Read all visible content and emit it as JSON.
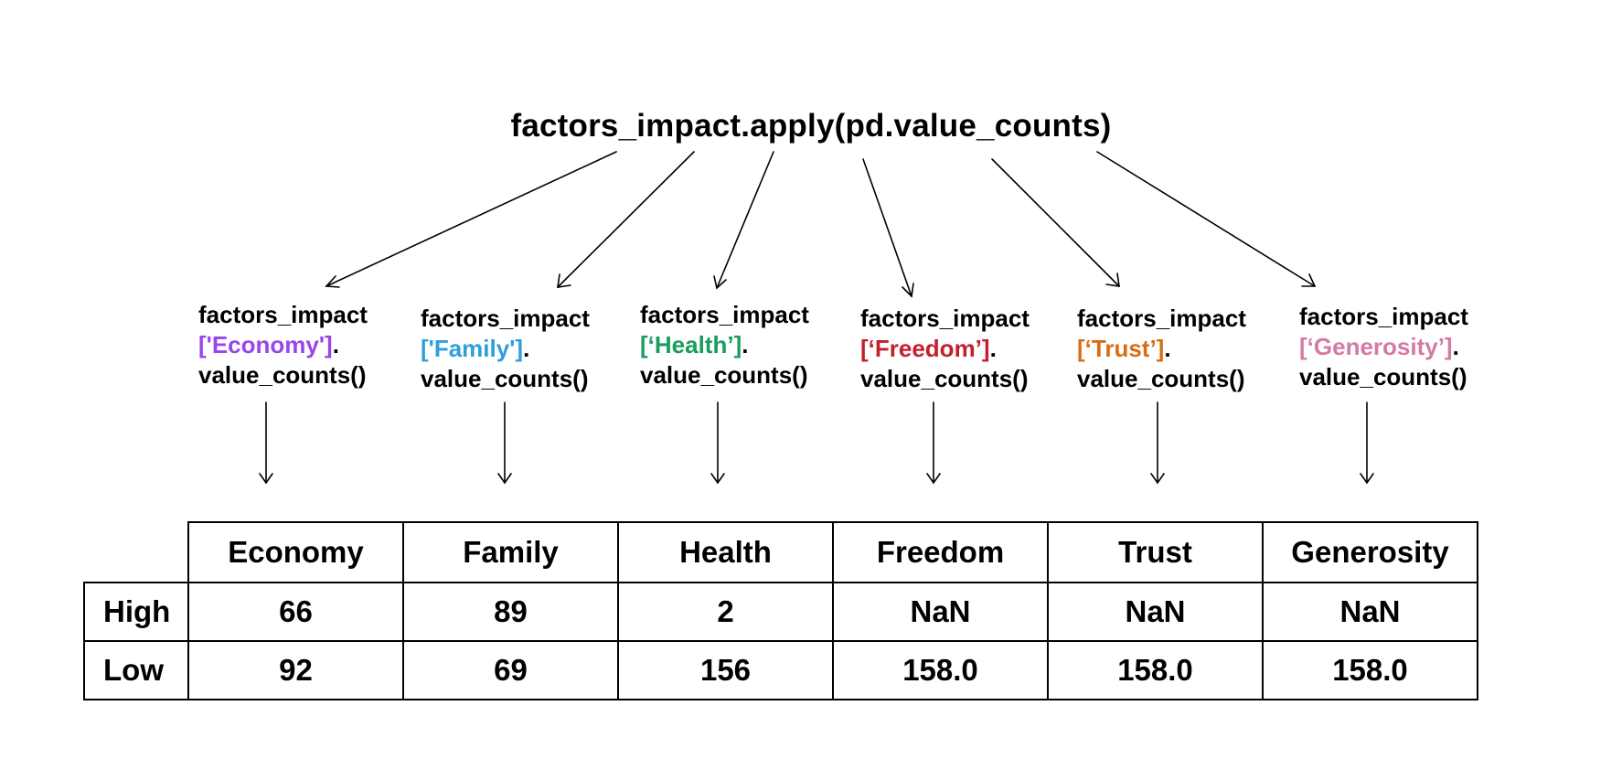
{
  "title": "factors_impact.apply(pd.value_counts)",
  "calls": [
    {
      "prefix": "factors_impact",
      "key": "['Economy']",
      "dot": ".",
      "method": "value_counts()",
      "color": "#9b45e8"
    },
    {
      "prefix": "factors_impact",
      "key": "['Family']",
      "dot": ".",
      "method": "value_counts()",
      "color": "#2e9fd8"
    },
    {
      "prefix": "factors_impact",
      "key": "[‘Health’]",
      "dot": ".",
      "method": "value_counts()",
      "color": "#1a9e5c"
    },
    {
      "prefix": "factors_impact",
      "key": "[‘Freedom’]",
      "dot": ".",
      "method": "value_counts()",
      "color": "#c2202c"
    },
    {
      "prefix": "factors_impact",
      "key": "[‘Trust’]",
      "dot": ".",
      "method": "value_counts()",
      "color": "#d86e12"
    },
    {
      "prefix": "factors_impact",
      "key": "[‘Generosity’]",
      "dot": ".",
      "method": "value_counts()",
      "color": "#d47aa6"
    }
  ],
  "table": {
    "columns": [
      "Economy",
      "Family",
      "Health",
      "Freedom",
      "Trust",
      "Generosity"
    ],
    "rows": [
      {
        "label": "High",
        "values": [
          "66",
          "89",
          "2",
          "NaN",
          "NaN",
          "NaN"
        ]
      },
      {
        "label": "Low",
        "values": [
          "92",
          "69",
          "156",
          "158.0",
          "158.0",
          "158.0"
        ]
      }
    ]
  }
}
